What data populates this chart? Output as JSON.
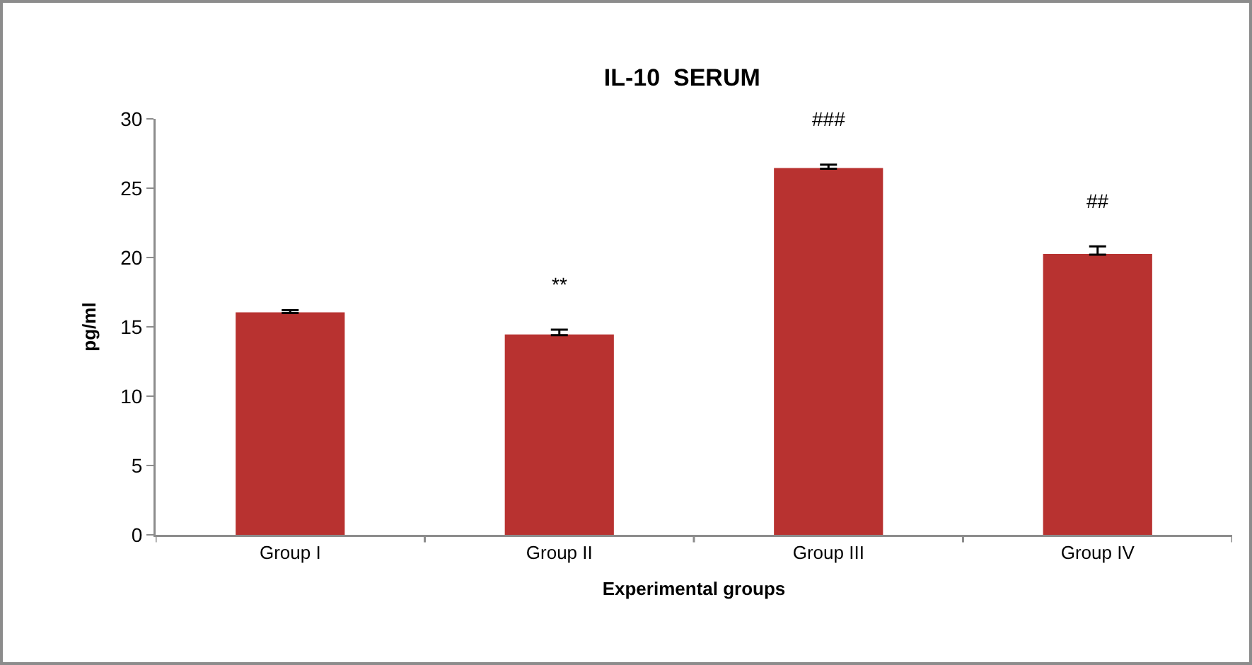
{
  "chart_data": {
    "type": "bar",
    "title": "IL-10  SERUM",
    "xlabel": "Experimental groups",
    "ylabel": "pg/ml",
    "categories": [
      "Group I",
      "Group II",
      "Group III",
      "Group IV"
    ],
    "values": [
      16.0,
      14.4,
      26.4,
      20.2
    ],
    "errors": [
      [
        16.0,
        16.2
      ],
      [
        14.4,
        14.8
      ],
      [
        26.4,
        26.7
      ],
      [
        20.2,
        20.8
      ]
    ],
    "color": "#b83230",
    "ylim": [
      0,
      30
    ],
    "yticks": [
      0,
      5,
      10,
      15,
      20,
      25,
      30
    ],
    "grid": false,
    "legend": false,
    "annotations": [
      {
        "text": "**",
        "x": "Group II",
        "y": 14.8
      },
      {
        "text": "###",
        "x": "Group III",
        "y": 26.7
      },
      {
        "text": "##",
        "x": "Group IV",
        "y": 20.8
      }
    ]
  }
}
